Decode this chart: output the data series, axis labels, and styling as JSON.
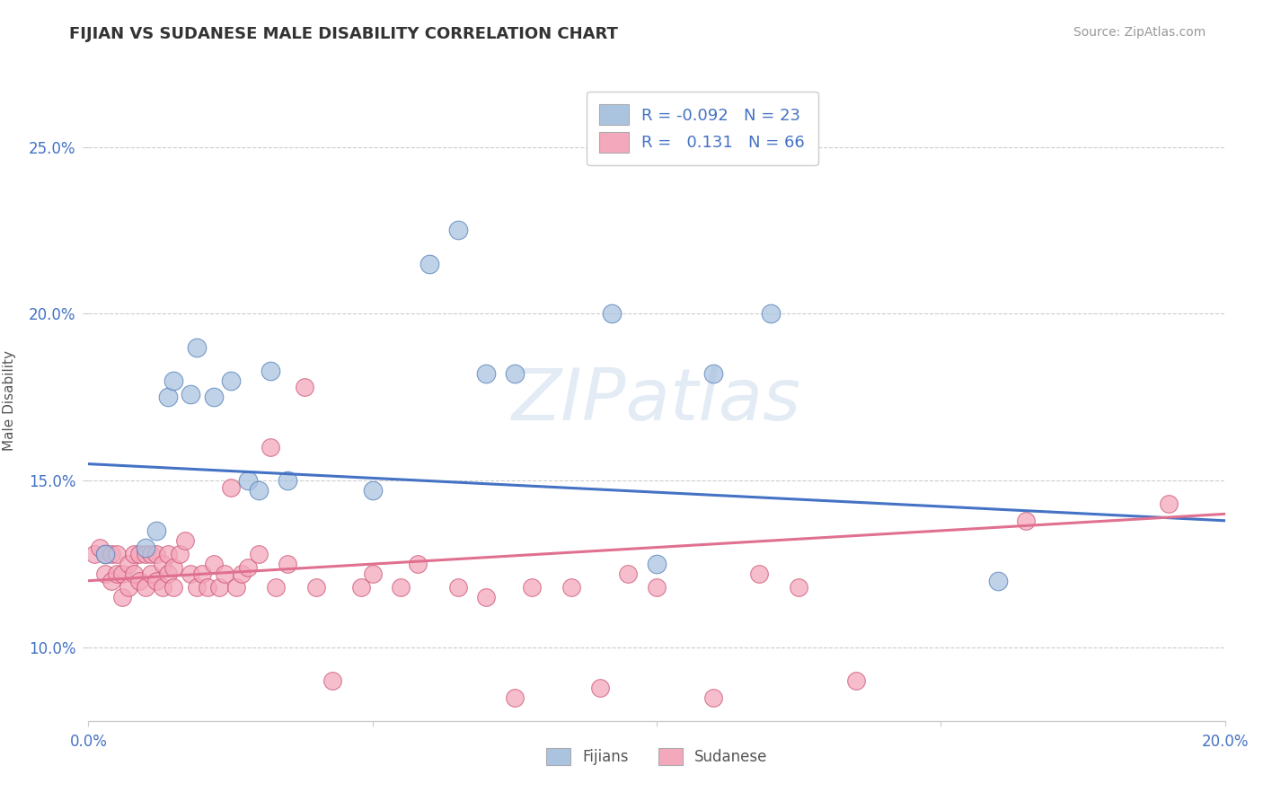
{
  "title": "FIJIAN VS SUDANESE MALE DISABILITY CORRELATION CHART",
  "source_text": "Source: ZipAtlas.com",
  "watermark": "ZIPatlas",
  "ylabel": "Male Disability",
  "x_min": 0.0,
  "x_max": 0.2,
  "y_min": 0.078,
  "y_max": 0.27,
  "x_ticks": [
    0.0,
    0.05,
    0.1,
    0.15,
    0.2
  ],
  "x_tick_labels": [
    "0.0%",
    "",
    "",
    "",
    "20.0%"
  ],
  "y_ticks": [
    0.1,
    0.15,
    0.2,
    0.25
  ],
  "y_tick_labels": [
    "10.0%",
    "15.0%",
    "20.0%",
    "25.0%"
  ],
  "fijian_color": "#aac4e0",
  "fijian_edge_color": "#5580bb",
  "sudanese_color": "#f4a8bb",
  "sudanese_edge_color": "#cc5577",
  "fijian_line_color": "#4472c4",
  "sudanese_line_color": "#e07090",
  "legend_r_fijian": "-0.092",
  "legend_n_fijian": "23",
  "legend_r_sudanese": "0.131",
  "legend_n_sudanese": "66",
  "legend_text_color": "#4472c4",
  "fijian_x": [
    0.003,
    0.01,
    0.012,
    0.014,
    0.015,
    0.018,
    0.019,
    0.022,
    0.025,
    0.028,
    0.03,
    0.032,
    0.035,
    0.05,
    0.06,
    0.065,
    0.07,
    0.075,
    0.092,
    0.1,
    0.11,
    0.12,
    0.16
  ],
  "fijian_y": [
    0.128,
    0.13,
    0.135,
    0.175,
    0.18,
    0.176,
    0.19,
    0.175,
    0.18,
    0.15,
    0.147,
    0.183,
    0.15,
    0.147,
    0.215,
    0.225,
    0.182,
    0.182,
    0.2,
    0.125,
    0.182,
    0.2,
    0.12
  ],
  "sudanese_x": [
    0.001,
    0.002,
    0.003,
    0.003,
    0.004,
    0.004,
    0.005,
    0.005,
    0.006,
    0.006,
    0.007,
    0.007,
    0.008,
    0.008,
    0.009,
    0.009,
    0.01,
    0.01,
    0.011,
    0.011,
    0.012,
    0.012,
    0.013,
    0.013,
    0.014,
    0.014,
    0.015,
    0.015,
    0.016,
    0.017,
    0.018,
    0.019,
    0.02,
    0.021,
    0.022,
    0.023,
    0.024,
    0.025,
    0.026,
    0.027,
    0.028,
    0.03,
    0.032,
    0.033,
    0.035,
    0.038,
    0.04,
    0.043,
    0.048,
    0.05,
    0.055,
    0.058,
    0.065,
    0.07,
    0.075,
    0.078,
    0.085,
    0.09,
    0.095,
    0.1,
    0.11,
    0.118,
    0.125,
    0.135,
    0.165,
    0.19
  ],
  "sudanese_y": [
    0.128,
    0.13,
    0.122,
    0.128,
    0.12,
    0.128,
    0.122,
    0.128,
    0.115,
    0.122,
    0.118,
    0.125,
    0.122,
    0.128,
    0.12,
    0.128,
    0.118,
    0.128,
    0.122,
    0.128,
    0.12,
    0.128,
    0.118,
    0.125,
    0.122,
    0.128,
    0.118,
    0.124,
    0.128,
    0.132,
    0.122,
    0.118,
    0.122,
    0.118,
    0.125,
    0.118,
    0.122,
    0.148,
    0.118,
    0.122,
    0.124,
    0.128,
    0.16,
    0.118,
    0.125,
    0.178,
    0.118,
    0.09,
    0.118,
    0.122,
    0.118,
    0.125,
    0.118,
    0.115,
    0.085,
    0.118,
    0.118,
    0.088,
    0.122,
    0.118,
    0.085,
    0.122,
    0.118,
    0.09,
    0.138,
    0.143
  ]
}
